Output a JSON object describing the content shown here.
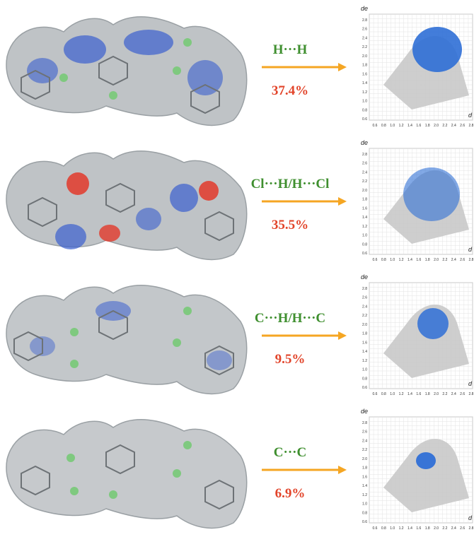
{
  "panels": [
    {
      "label": "H···H",
      "percent": "37.4%"
    },
    {
      "label": "Cl···H/H···Cl",
      "percent": "35.5%"
    },
    {
      "label": "C···H/H···C",
      "percent": "9.5%"
    },
    {
      "label": "C···C",
      "percent": "6.9%"
    }
  ],
  "axis": {
    "y_label": "de",
    "x_label": "d",
    "y_ticks": [
      "2.8",
      "2.6",
      "2.4",
      "2.2",
      "2.0",
      "1.8",
      "1.6",
      "1.4",
      "1.2",
      "1.0",
      "0.8",
      "0.6"
    ],
    "x_ticks": [
      "0.6",
      "0.8",
      "1.0",
      "1.2",
      "1.4",
      "1.6",
      "1.8",
      "2.0",
      "2.2",
      "2.4",
      "2.6",
      "2.8"
    ]
  },
  "colors": {
    "label_green": "#3f8f2f",
    "percent_red": "#e2442a",
    "arrow_orange": "#f5a623",
    "surface_grey": "#b5b9bc",
    "contact_blue": "#3a5fcf",
    "contact_red": "#e23a2a",
    "chlorine_green": "#7fc97f"
  }
}
